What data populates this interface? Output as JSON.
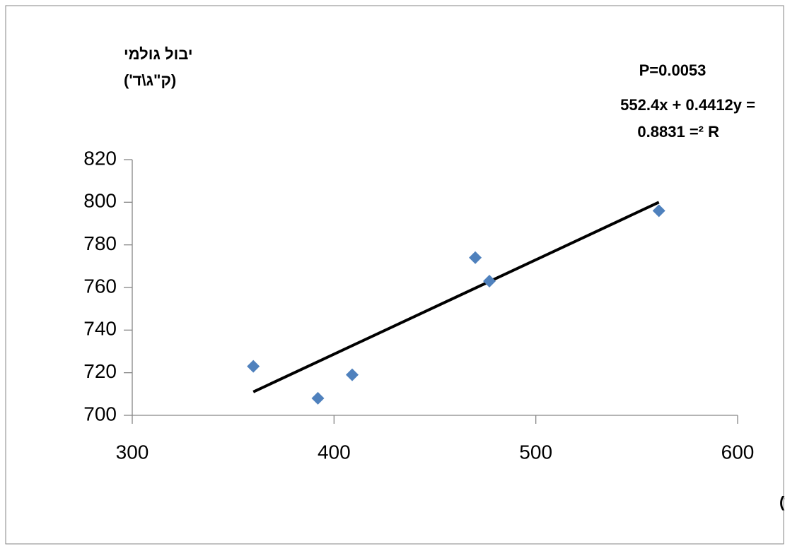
{
  "chart_data": {
    "type": "scatter",
    "y_label_lines": [
      "יבול גולמי",
      "(ק\"ג\\ד')"
    ],
    "x_label": "חומר יבש גבעולים (גר'\\מ\"ר)",
    "annotations": [
      "P=0.0053",
      "552.4x + 0.4412y =",
      "0.8831 =² R"
    ],
    "series": [
      {
        "color": "#4f81bd",
        "x": [
          360,
          392,
          409,
          470,
          477,
          561
        ],
        "values": [
          723,
          708,
          719,
          774,
          763,
          796
        ]
      }
    ],
    "trendline": {
      "color": "#000000",
      "x": [
        360,
        561
      ],
      "values": [
        711,
        800
      ]
    },
    "xlim": [
      300,
      600
    ],
    "xticks": [
      300,
      400,
      500,
      600
    ],
    "ylim": [
      700,
      820
    ],
    "yticks": [
      700,
      720,
      740,
      760,
      780,
      800,
      820
    ],
    "grid": false
  }
}
